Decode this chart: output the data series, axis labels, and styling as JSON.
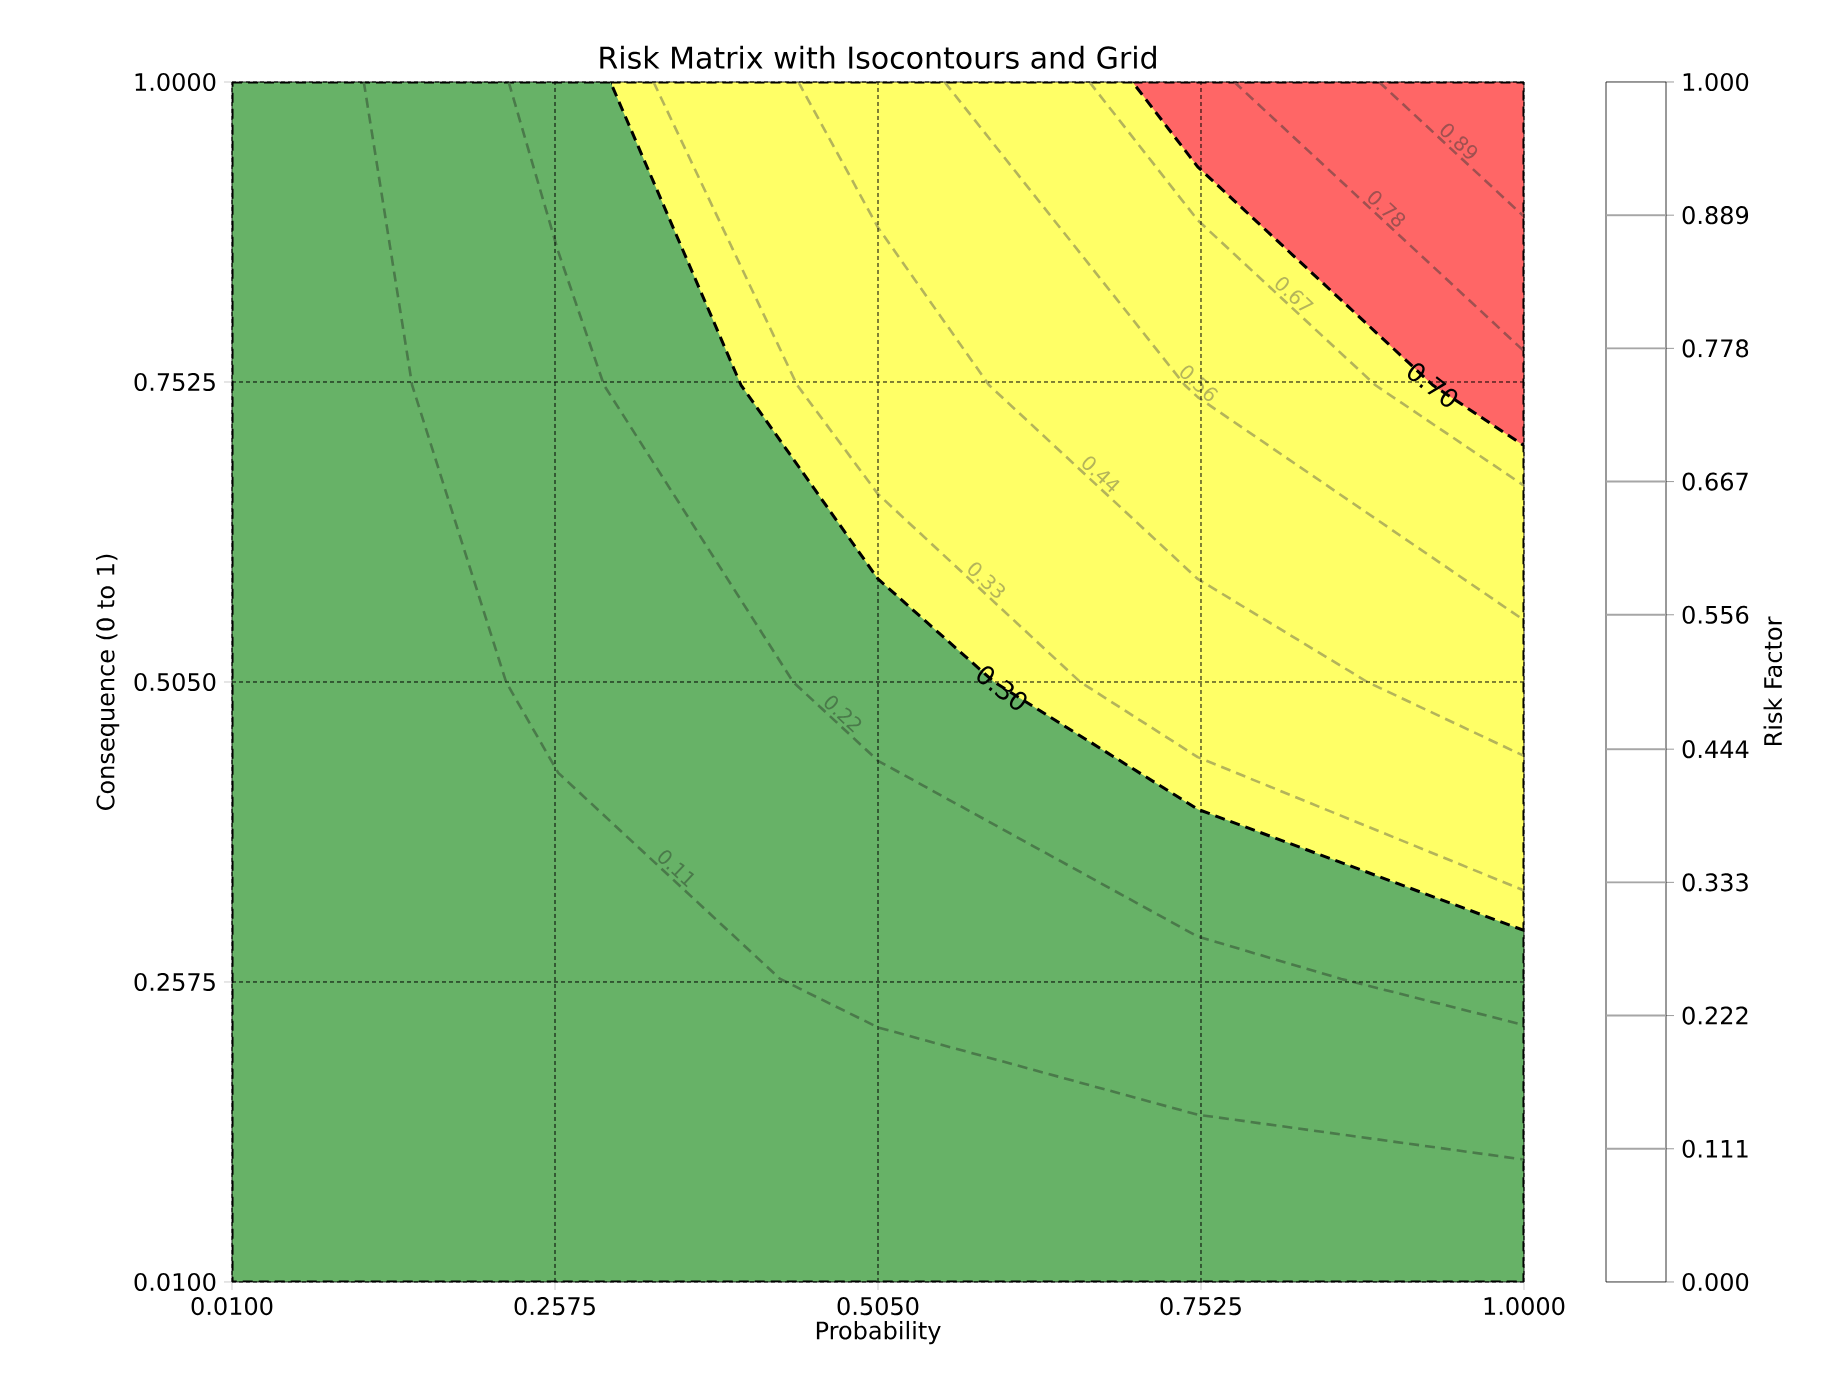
{
  "chart_data": {
    "type": "line",
    "title": "Risk Matrix with Isocontours and Grid",
    "xlabel": "Probability",
    "ylabel": "Consequence (0 to 1)",
    "clabel": "Risk Factor",
    "xlim": [
      0.01,
      1
    ],
    "ylim": [
      0.01,
      1
    ],
    "xticks": [
      {
        "value": 0.01,
        "label": "0.0100"
      },
      {
        "value": 0.2575,
        "label": "0.2575"
      },
      {
        "value": 0.505,
        "label": "0.5050"
      },
      {
        "value": 0.7525,
        "label": "0.7525"
      },
      {
        "value": 1,
        "label": "1.0000"
      }
    ],
    "yticks": [
      {
        "value": 0.01,
        "label": "0.0100"
      },
      {
        "value": 0.2575,
        "label": "0.2575"
      },
      {
        "value": 0.505,
        "label": "0.5050"
      },
      {
        "value": 0.7525,
        "label": "0.7525"
      },
      {
        "value": 1,
        "label": "1.0000"
      }
    ],
    "clim": [
      0,
      1
    ],
    "cticks": [
      {
        "value": 0,
        "label": "0.000"
      },
      {
        "value": 0.111,
        "label": "0.111"
      },
      {
        "value": 0.222,
        "label": "0.222"
      },
      {
        "value": 0.333,
        "label": "0.333"
      },
      {
        "value": 0.444,
        "label": "0.444"
      },
      {
        "value": 0.556,
        "label": "0.556"
      },
      {
        "value": 0.667,
        "label": "0.667"
      },
      {
        "value": 0.778,
        "label": "0.778"
      },
      {
        "value": 0.889,
        "label": "0.889"
      },
      {
        "value": 1,
        "label": "1.000"
      }
    ],
    "grid": true,
    "marker": "none",
    "line_style": "dashed",
    "series": [
      {
        "type": "area",
        "color": "#ff6666",
        "x": [
          0.7,
          1
        ],
        "values": [
          1,
          1
        ]
      },
      {
        "type": "area",
        "color": "#ffff66",
        "x": [
          0.3,
          0.7,
          0.75,
          0.93,
          1
        ],
        "values": [
          1,
          1,
          0.93,
          0.75,
          0.7
        ]
      },
      {
        "type": "area",
        "color": "#67b267",
        "x": [
          0.01,
          0.3,
          0.4,
          0.505,
          0.594,
          0.75,
          1
        ],
        "values": [
          1,
          1,
          0.75,
          0.59,
          0.505,
          0.4,
          0.3
        ]
      },
      {
        "type": "line",
        "name": "0.11",
        "color": "#4a7a4a",
        "x": [
          0.111,
          0.148,
          0.22,
          0.26,
          0.43,
          0.505,
          0.75,
          1
        ],
        "values": [
          1,
          0.75,
          0.505,
          0.43,
          0.26,
          0.22,
          0.148,
          0.111
        ]
      },
      {
        "type": "line",
        "name": "0.22",
        "color": "#4a7a4a",
        "x": [
          0.222,
          0.26,
          0.295,
          0.44,
          0.505,
          0.75,
          0.86,
          1
        ],
        "values": [
          1,
          0.86,
          0.75,
          0.505,
          0.44,
          0.295,
          0.26,
          0.222
        ]
      },
      {
        "type": "line",
        "name": "0.33",
        "color": "#b4b45a",
        "x": [
          0.333,
          0.443,
          0.505,
          0.66,
          0.75,
          1
        ],
        "values": [
          1,
          0.75,
          0.66,
          0.505,
          0.443,
          0.333
        ]
      },
      {
        "type": "line",
        "name": "0.44",
        "color": "#b4b45a",
        "x": [
          0.444,
          0.505,
          0.59,
          0.75,
          0.88,
          1
        ],
        "values": [
          1,
          0.88,
          0.75,
          0.59,
          0.505,
          0.444
        ]
      },
      {
        "type": "line",
        "name": "0.56",
        "color": "#b4b45a",
        "x": [
          0.556,
          0.74,
          0.75,
          1
        ],
        "values": [
          1,
          0.75,
          0.74,
          0.556
        ]
      },
      {
        "type": "line",
        "name": "0.67",
        "color": "#b4b45a",
        "x": [
          0.667,
          0.75,
          0.886,
          1
        ],
        "values": [
          1,
          0.886,
          0.75,
          0.667
        ]
      },
      {
        "type": "line",
        "name": "0.78",
        "color": "#a05050",
        "x": [
          0.778,
          1
        ],
        "values": [
          1,
          0.778
        ]
      },
      {
        "type": "line",
        "name": "0.89",
        "color": "#a05050",
        "x": [
          0.889,
          1
        ],
        "values": [
          1,
          0.889
        ]
      }
    ],
    "annotations": [
      {
        "text": "0.30",
        "x": 0.6,
        "y": 0.5
      },
      {
        "text": "0.70",
        "x": 0.93,
        "y": 0.75
      }
    ]
  }
}
